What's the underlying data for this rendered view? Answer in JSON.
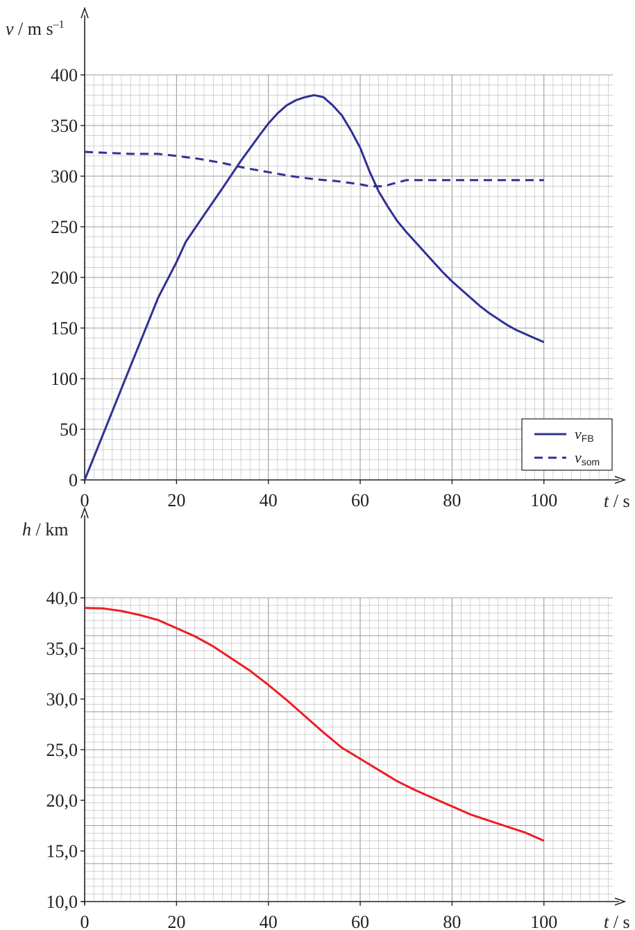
{
  "chart_data": [
    {
      "type": "line",
      "ylabel": {
        "symbol": "v",
        "unit": " / m s",
        "sup": "–1"
      },
      "xlabel": {
        "symbol": "t",
        "unit": " / s"
      },
      "xlim": [
        0,
        115
      ],
      "ylim": [
        0,
        400
      ],
      "x_ticks": [
        0,
        20,
        40,
        60,
        80,
        100
      ],
      "y_ticks": [
        0,
        50,
        100,
        150,
        200,
        250,
        300,
        350,
        400
      ],
      "x_tick_labels": [
        "0",
        "20",
        "40",
        "60",
        "80",
        "100"
      ],
      "y_tick_labels": [
        "0",
        "50",
        "100",
        "150",
        "200",
        "250",
        "300",
        "350",
        "400"
      ],
      "grid": true,
      "legend": {
        "placement": "bottom-right",
        "entries": [
          {
            "main": "v",
            "sub": "FB",
            "style": "solid"
          },
          {
            "main": "v",
            "sub": "som",
            "style": "dashed"
          }
        ]
      },
      "series": [
        {
          "key": "v_FB",
          "style": "solid",
          "color": "#2e3192",
          "points": [
            [
              0,
              0
            ],
            [
              4,
              45
            ],
            [
              8,
              90
            ],
            [
              12,
              135
            ],
            [
              16,
              180
            ],
            [
              20,
              215
            ],
            [
              22,
              235
            ],
            [
              25,
              255
            ],
            [
              30,
              288
            ],
            [
              34,
              315
            ],
            [
              38,
              340
            ],
            [
              40,
              352
            ],
            [
              42,
              362
            ],
            [
              44,
              370
            ],
            [
              46,
              375
            ],
            [
              48,
              378
            ],
            [
              50,
              380
            ],
            [
              52,
              378
            ],
            [
              54,
              370
            ],
            [
              56,
              360
            ],
            [
              58,
              345
            ],
            [
              60,
              328
            ],
            [
              62,
              305
            ],
            [
              64,
              285
            ],
            [
              66,
              270
            ],
            [
              68,
              256
            ],
            [
              70,
              245
            ],
            [
              72,
              235
            ],
            [
              74,
              225
            ],
            [
              76,
              215
            ],
            [
              78,
              205
            ],
            [
              80,
              196
            ],
            [
              82,
              188
            ],
            [
              84,
              180
            ],
            [
              86,
              172
            ],
            [
              88,
              165
            ],
            [
              90,
              159
            ],
            [
              92,
              153
            ],
            [
              94,
              148
            ],
            [
              96,
              144
            ],
            [
              98,
              140
            ],
            [
              100,
              136
            ]
          ]
        },
        {
          "key": "v_som",
          "style": "dashed",
          "color": "#2e3192",
          "points": [
            [
              0,
              324
            ],
            [
              10,
              322
            ],
            [
              16,
              322
            ],
            [
              20,
              320
            ],
            [
              25,
              317
            ],
            [
              30,
              313
            ],
            [
              35,
              308
            ],
            [
              40,
              304
            ],
            [
              45,
              300
            ],
            [
              50,
              297
            ],
            [
              55,
              295
            ],
            [
              60,
              292
            ],
            [
              62,
              290
            ],
            [
              65,
              290
            ],
            [
              70,
              296
            ],
            [
              80,
              296
            ],
            [
              90,
              296
            ],
            [
              100,
              296
            ]
          ]
        }
      ]
    },
    {
      "type": "line",
      "ylabel": {
        "symbol": "h",
        "unit": " / km"
      },
      "xlabel": {
        "symbol": "t",
        "unit": " / s"
      },
      "xlim": [
        0,
        115
      ],
      "ylim": [
        10,
        40
      ],
      "x_ticks": [
        0,
        20,
        40,
        60,
        80,
        100
      ],
      "y_ticks": [
        10,
        15,
        20,
        25,
        30,
        35,
        40
      ],
      "x_tick_labels": [
        "0",
        "20",
        "40",
        "60",
        "80",
        "100"
      ],
      "y_tick_labels": [
        "10,0",
        "15,0",
        "20,0",
        "25,0",
        "30,0",
        "35,0",
        "40,0"
      ],
      "grid": true,
      "series": [
        {
          "key": "h",
          "style": "solid",
          "color": "#ed1c24",
          "points": [
            [
              0,
              39.0
            ],
            [
              4,
              38.95
            ],
            [
              8,
              38.7
            ],
            [
              12,
              38.3
            ],
            [
              16,
              37.8
            ],
            [
              20,
              37.0
            ],
            [
              24,
              36.2
            ],
            [
              28,
              35.2
            ],
            [
              32,
              34.0
            ],
            [
              36,
              32.8
            ],
            [
              40,
              31.4
            ],
            [
              44,
              29.9
            ],
            [
              48,
              28.3
            ],
            [
              52,
              26.7
            ],
            [
              56,
              25.2
            ],
            [
              60,
              24.1
            ],
            [
              64,
              23.0
            ],
            [
              68,
              21.9
            ],
            [
              72,
              21.0
            ],
            [
              76,
              20.2
            ],
            [
              80,
              19.4
            ],
            [
              84,
              18.6
            ],
            [
              88,
              18.0
            ],
            [
              92,
              17.4
            ],
            [
              96,
              16.8
            ],
            [
              100,
              16.0
            ]
          ]
        }
      ]
    }
  ]
}
